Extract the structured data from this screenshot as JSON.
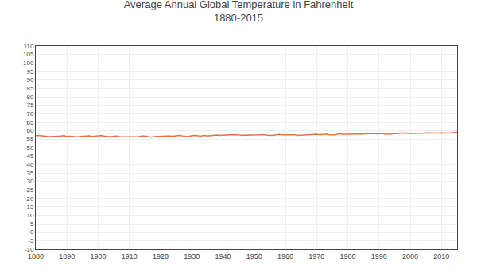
{
  "chart_data": {
    "type": "line",
    "title": "Average Annual Global Temperature in Fahrenheit",
    "subtitle": "1880-2015",
    "x": [
      1880,
      1881,
      1882,
      1883,
      1884,
      1885,
      1886,
      1887,
      1888,
      1889,
      1890,
      1891,
      1892,
      1893,
      1894,
      1895,
      1896,
      1897,
      1898,
      1899,
      1900,
      1901,
      1902,
      1903,
      1904,
      1905,
      1906,
      1907,
      1908,
      1909,
      1910,
      1911,
      1912,
      1913,
      1914,
      1915,
      1916,
      1917,
      1918,
      1919,
      1920,
      1921,
      1922,
      1923,
      1924,
      1925,
      1926,
      1927,
      1928,
      1929,
      1930,
      1931,
      1932,
      1933,
      1934,
      1935,
      1936,
      1937,
      1938,
      1939,
      1940,
      1941,
      1942,
      1943,
      1944,
      1945,
      1946,
      1947,
      1948,
      1949,
      1950,
      1951,
      1952,
      1953,
      1954,
      1955,
      1956,
      1957,
      1958,
      1959,
      1960,
      1961,
      1962,
      1963,
      1964,
      1965,
      1966,
      1967,
      1968,
      1969,
      1970,
      1971,
      1972,
      1973,
      1974,
      1975,
      1976,
      1977,
      1978,
      1979,
      1980,
      1981,
      1982,
      1983,
      1984,
      1985,
      1986,
      1987,
      1988,
      1989,
      1990,
      1991,
      1992,
      1993,
      1994,
      1995,
      1996,
      1997,
      1998,
      1999,
      2000,
      2001,
      2002,
      2003,
      2004,
      2005,
      2006,
      2007,
      2008,
      2009,
      2010,
      2011,
      2012,
      2013,
      2014,
      2015
    ],
    "values": [
      57.11,
      57.29,
      57.02,
      56.75,
      56.57,
      56.61,
      56.66,
      56.52,
      56.88,
      57.11,
      56.66,
      56.75,
      56.52,
      56.48,
      56.52,
      56.75,
      57.02,
      57.02,
      56.7,
      56.97,
      57.02,
      57.11,
      56.7,
      56.57,
      56.52,
      56.75,
      56.88,
      56.43,
      56.43,
      56.52,
      56.52,
      56.61,
      56.75,
      56.57,
      56.97,
      56.97,
      56.52,
      56.25,
      56.57,
      56.75,
      56.88,
      57.02,
      56.97,
      56.97,
      56.75,
      57.02,
      57.29,
      56.97,
      56.88,
      56.61,
      57.11,
      57.29,
      57.02,
      56.88,
      57.29,
      56.97,
      57.11,
      57.38,
      57.47,
      57.29,
      57.47,
      57.65,
      57.56,
      57.56,
      57.74,
      57.56,
      57.29,
      57.38,
      57.38,
      57.29,
      57.38,
      57.56,
      57.65,
      57.74,
      57.38,
      57.38,
      57.29,
      57.65,
      57.83,
      57.65,
      57.65,
      57.74,
      57.74,
      57.65,
      57.29,
      57.38,
      57.47,
      57.83,
      57.74,
      57.92,
      58.01,
      57.65,
      57.74,
      58.1,
      57.65,
      57.74,
      57.56,
      58.19,
      57.92,
      57.92,
      58.01,
      58.1,
      57.92,
      58.19,
      57.92,
      58.28,
      58.19,
      58.46,
      58.46,
      58.19,
      58.28,
      58.37,
      57.92,
      57.92,
      58.1,
      58.46,
      58.37,
      58.64,
      58.82,
      58.46,
      58.46,
      58.55,
      58.64,
      58.73,
      58.55,
      58.82,
      58.73,
      58.91,
      58.64,
      58.73,
      58.82,
      58.64,
      58.73,
      58.82,
      58.91,
      59.09
    ],
    "color": "#E87040",
    "xlim": [
      1880,
      2015
    ],
    "xticks": [
      1880,
      1890,
      1900,
      1910,
      1920,
      1930,
      1940,
      1950,
      1960,
      1970,
      1980,
      1990,
      2000,
      2010
    ],
    "ylim": [
      -10,
      110
    ],
    "yticks": [
      -10,
      -5,
      0,
      5,
      10,
      15,
      20,
      25,
      30,
      35,
      40,
      45,
      50,
      55,
      60,
      65,
      70,
      75,
      80,
      85,
      90,
      95,
      100,
      105,
      110
    ],
    "grid": true
  }
}
